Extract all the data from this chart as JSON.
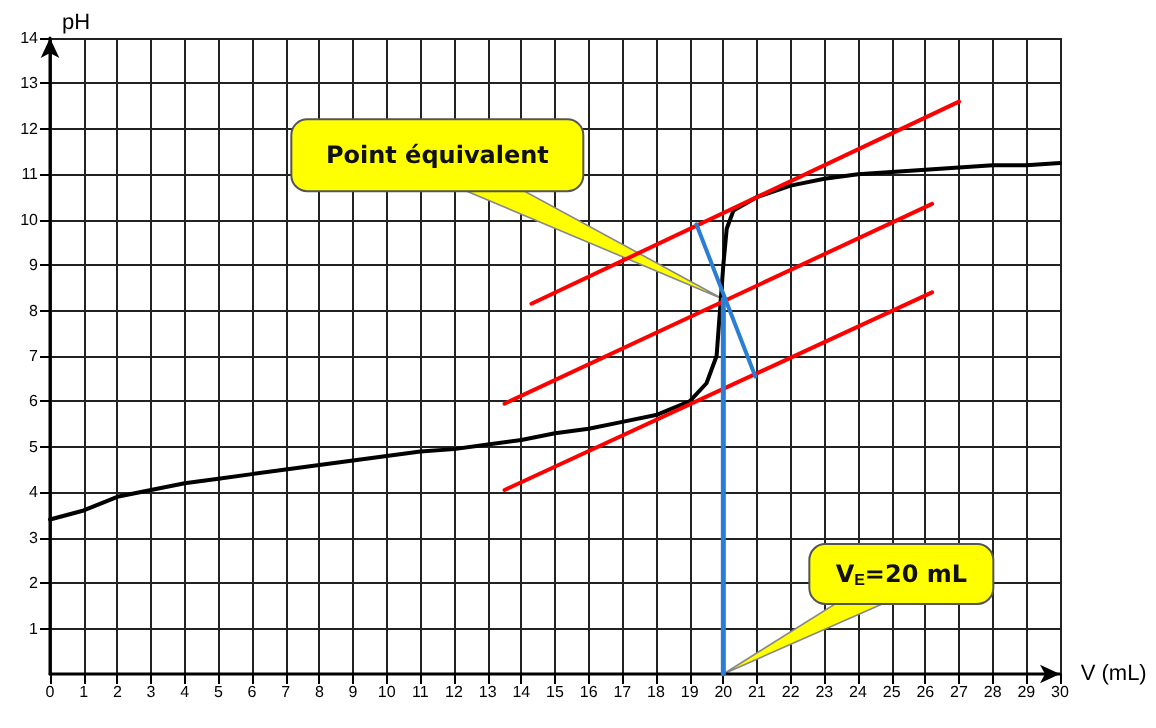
{
  "chart_data": {
    "type": "line",
    "xlabel": "V (mL)",
    "ylabel": "pH",
    "xlim": [
      0,
      30
    ],
    "xticks": [
      0,
      1,
      2,
      3,
      4,
      5,
      6,
      7,
      8,
      9,
      10,
      11,
      12,
      13,
      14,
      15,
      16,
      17,
      18,
      19,
      20,
      21,
      22,
      23,
      24,
      25,
      26,
      27,
      28,
      29,
      30
    ],
    "ylim": [
      0,
      14
    ],
    "yticks": [
      1,
      2,
      3,
      4,
      5,
      6,
      7,
      8,
      9,
      10,
      11,
      12,
      13,
      14
    ],
    "grid": true,
    "marker": "none",
    "line_style": "solid",
    "series": [
      {
        "color": "#000000",
        "x": [
          0,
          1,
          2,
          3,
          4,
          5,
          6,
          7,
          8,
          9,
          10,
          11,
          12,
          13,
          14,
          15,
          16,
          17,
          18,
          19,
          19.5,
          19.8,
          19.9,
          20,
          20.1,
          20.3,
          21,
          22,
          23,
          24,
          25,
          26,
          27,
          28,
          29,
          30
        ],
        "values": [
          3.4,
          3.6,
          3.9,
          4.05,
          4.2,
          4.3,
          4.4,
          4.5,
          4.6,
          4.7,
          4.8,
          4.9,
          4.95,
          5.05,
          5.15,
          5.3,
          5.4,
          5.55,
          5.7,
          6,
          6.4,
          7,
          8,
          9,
          9.8,
          10.2,
          10.5,
          10.75,
          10.9,
          11,
          11.05,
          11.1,
          11.15,
          11.2,
          11.2,
          11.25
        ]
      },
      {
        "color": "#ff0000",
        "x": [
          14.3,
          27
        ],
        "values": [
          8.15,
          12.6
        ]
      },
      {
        "color": "#ff0000",
        "x": [
          13.5,
          26.2
        ],
        "values": [
          5.95,
          10.35
        ]
      },
      {
        "color": "#ff0000",
        "x": [
          13.5,
          26.2
        ],
        "values": [
          4.05,
          8.4
        ]
      },
      {
        "color": "#2a7fd4",
        "x": [
          19.2,
          20.95
        ],
        "values": [
          9.9,
          6.55
        ]
      },
      {
        "color": "#2a7fd4",
        "x": [
          20,
          20
        ],
        "values": [
          8.25,
          0
        ]
      }
    ],
    "annotations": [
      {
        "text": "Point équivalent",
        "x": 20,
        "y": 8.25
      },
      {
        "text": "V$_{E}$=20 mL",
        "x": 20,
        "y": 0
      }
    ]
  }
}
